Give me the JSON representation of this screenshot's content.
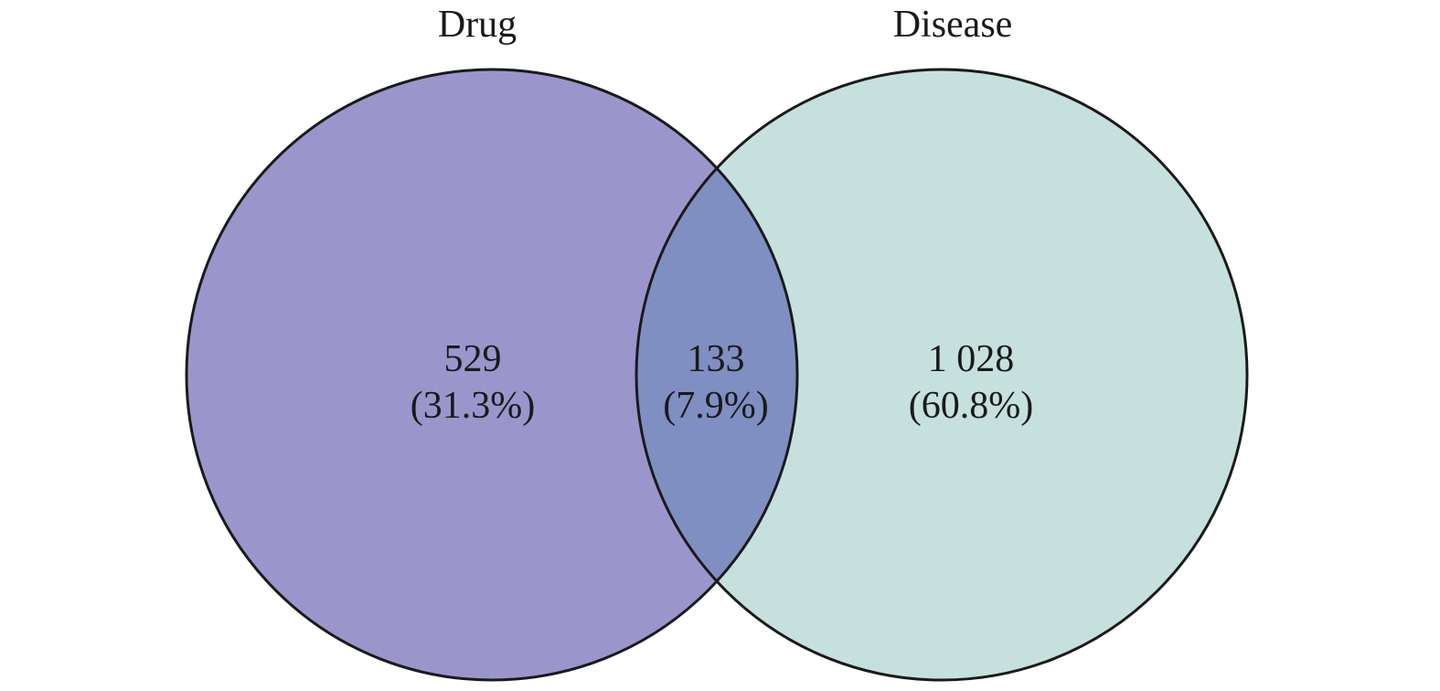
{
  "venn": {
    "sets": [
      {
        "name": "Drug",
        "color": "#9a96cc"
      },
      {
        "name": "Disease",
        "color": "#c6e0dd"
      }
    ],
    "overlap_color": "#7f8fc2",
    "outline_color": "#1a1a1a",
    "regions": {
      "drug_only": {
        "count": "529",
        "percent": "(31.3%)"
      },
      "intersection": {
        "count": "133",
        "percent": "(7.9%)"
      },
      "disease_only": {
        "count": "1 028",
        "percent": "(60.8%)"
      }
    }
  }
}
